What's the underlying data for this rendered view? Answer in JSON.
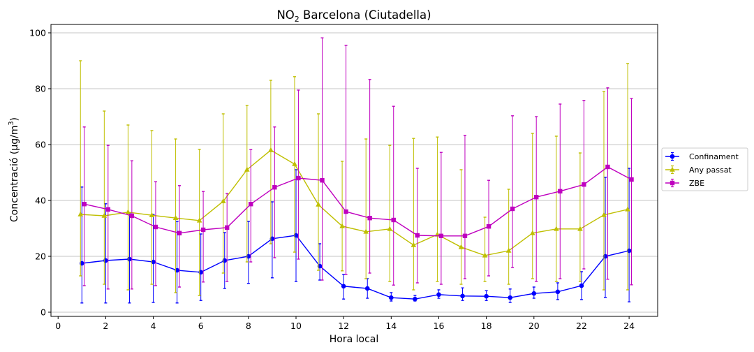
{
  "chart_data": {
    "type": "line",
    "title_main": "NO",
    "title_sub": "2",
    "title_rest": " Barcelona (Ciutadella)",
    "xlabel": "Hora local",
    "ylabel_main": "Concentració (µg/m",
    "ylabel_sup": "3",
    "ylabel_end": ")",
    "xlim": [
      -0.3,
      25.2
    ],
    "ylim": [
      -1.5,
      103
    ],
    "xticks": [
      0,
      2,
      4,
      6,
      8,
      10,
      12,
      14,
      16,
      18,
      20,
      22,
      24
    ],
    "yticks": [
      0,
      20,
      40,
      60,
      80,
      100
    ],
    "grid": "horizontal",
    "legend": "right",
    "x": [
      1,
      2,
      3,
      4,
      5,
      6,
      7,
      8,
      9,
      10,
      11,
      12,
      13,
      14,
      15,
      16,
      17,
      18,
      19,
      20,
      21,
      22,
      23,
      24
    ],
    "series": [
      {
        "name": "Confinament",
        "color": "#0000ff",
        "marker": "circle",
        "offset": 0,
        "values": [
          17.5,
          18.5,
          19,
          18,
          15,
          14.3,
          18.5,
          20,
          26.3,
          27.5,
          16.5,
          9.3,
          8.5,
          5.2,
          4.7,
          6.3,
          5.8,
          5.7,
          5.2,
          6.7,
          7.3,
          9.5,
          20,
          22
        ],
        "lower": [
          3.3,
          3.3,
          3.3,
          3.5,
          3.3,
          4.2,
          8.5,
          10.3,
          12.3,
          11,
          11.5,
          4.7,
          5,
          4,
          4,
          5,
          4.2,
          4.2,
          3.5,
          5,
          4.5,
          4.5,
          5.3,
          3.7
        ],
        "upper": [
          44.8,
          38.8,
          35.5,
          35,
          32.5,
          28,
          28.5,
          32.5,
          39.5,
          51,
          24.5,
          13.5,
          12,
          7,
          6,
          8,
          8.7,
          7.7,
          8.3,
          9,
          10.5,
          14.5,
          48.3,
          51.5
        ]
      },
      {
        "name": "Any passat",
        "color": "#bfbf00",
        "marker": "triangle",
        "offset": -0.06,
        "values": [
          35,
          34.5,
          35.8,
          34.7,
          33.7,
          32.8,
          39.7,
          51,
          58,
          53,
          38.5,
          30.8,
          28.8,
          29.8,
          24,
          27.8,
          23.3,
          20.3,
          22,
          28.3,
          29.8,
          29.8,
          34.8,
          36.8
        ],
        "lower": [
          13,
          10,
          8,
          10,
          7,
          6,
          14,
          18,
          24.5,
          21.5,
          15,
          14.8,
          12,
          11,
          8,
          11,
          10,
          11,
          10,
          12,
          11,
          11,
          8,
          8
        ],
        "upper": [
          90,
          72,
          67,
          65,
          62,
          58.3,
          71,
          74,
          83,
          84.3,
          71,
          54,
          62,
          59.7,
          62.2,
          62.7,
          51,
          34,
          44,
          64,
          63,
          57,
          79,
          89
        ]
      },
      {
        "name": "ZBE",
        "color": "#bf00bf",
        "marker": "square",
        "offset": 0.1,
        "values": [
          38.7,
          36.8,
          34.5,
          30.5,
          28.3,
          29.5,
          30.3,
          38.7,
          44.7,
          48,
          47.2,
          36,
          33.7,
          33,
          27.5,
          27.3,
          27.3,
          30.7,
          37,
          41.2,
          43.3,
          45.7,
          52,
          47.5
        ],
        "lower": [
          9.5,
          8.3,
          8.3,
          9.5,
          9,
          10.8,
          11,
          18,
          19.5,
          19,
          11.5,
          13.5,
          14,
          9.7,
          10.5,
          10,
          12,
          13,
          16,
          11,
          12,
          15.5,
          11.8,
          9.8
        ],
        "upper": [
          66.3,
          59.7,
          54.2,
          46.7,
          45.3,
          43.2,
          42.5,
          58.2,
          66.3,
          79.5,
          98.2,
          95.5,
          83.3,
          73.7,
          51.5,
          57.2,
          63.3,
          47.2,
          70.3,
          70,
          74.5,
          75.8,
          80.3,
          76.5
        ]
      }
    ]
  }
}
